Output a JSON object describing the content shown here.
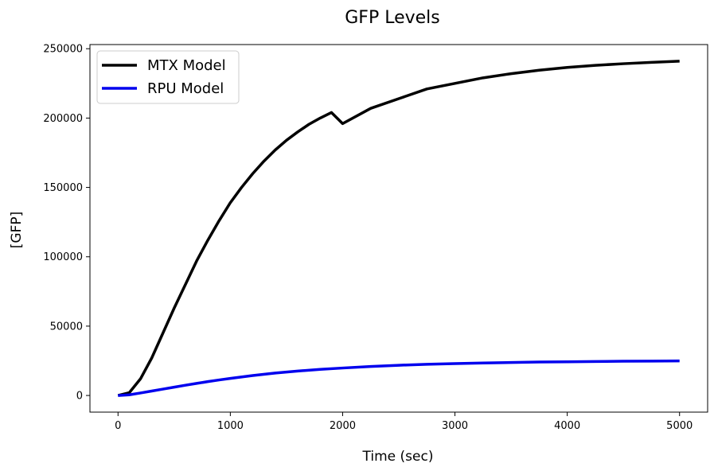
{
  "chart_data": {
    "type": "line",
    "title": "GFP Levels",
    "xlabel": "Time (sec)",
    "ylabel": "[GFP]",
    "xlim": [
      -250,
      5250
    ],
    "ylim": [
      -12000,
      253000
    ],
    "xticks": [
      0,
      1000,
      2000,
      3000,
      4000,
      5000
    ],
    "xtick_labels": [
      "0",
      "1000",
      "2000",
      "3000",
      "4000",
      "5000"
    ],
    "yticks": [
      0,
      50000,
      100000,
      150000,
      200000,
      250000
    ],
    "ytick_labels": [
      "0",
      "50000",
      "100000",
      "150000",
      "200000",
      "250000"
    ],
    "grid": false,
    "legend_position": "top-left",
    "series": [
      {
        "name": "MTX Model",
        "color": "#000000",
        "x": [
          0,
          100,
          200,
          300,
          400,
          500,
          600,
          700,
          800,
          900,
          1000,
          1100,
          1200,
          1300,
          1400,
          1500,
          1600,
          1700,
          1800,
          1900,
          2000,
          2250,
          2500,
          2750,
          3000,
          3250,
          3500,
          3750,
          4000,
          4250,
          4500,
          4750,
          5000
        ],
        "y": [
          0,
          2000,
          12000,
          27000,
          45000,
          63000,
          80000,
          97000,
          112000,
          126000,
          139000,
          150000,
          160000,
          169000,
          177000,
          184000,
          190000,
          195500,
          200000,
          204000,
          196000,
          207000,
          214000,
          221000,
          225000,
          229000,
          232000,
          234500,
          236500,
          238000,
          239200,
          240200,
          241000
        ]
      },
      {
        "name": "RPU Model",
        "color": "#0000ee",
        "x": [
          0,
          100,
          200,
          300,
          400,
          500,
          600,
          700,
          800,
          900,
          1000,
          1200,
          1400,
          1600,
          1800,
          2000,
          2250,
          2500,
          2750,
          3000,
          3250,
          3500,
          3750,
          4000,
          4250,
          4500,
          4750,
          5000
        ],
        "y": [
          0,
          500,
          1800,
          3200,
          4600,
          6000,
          7400,
          8700,
          10000,
          11200,
          12300,
          14400,
          16200,
          17600,
          18800,
          19800,
          20900,
          21800,
          22500,
          23000,
          23400,
          23800,
          24100,
          24300,
          24500,
          24700,
          24800,
          24900
        ]
      }
    ]
  }
}
